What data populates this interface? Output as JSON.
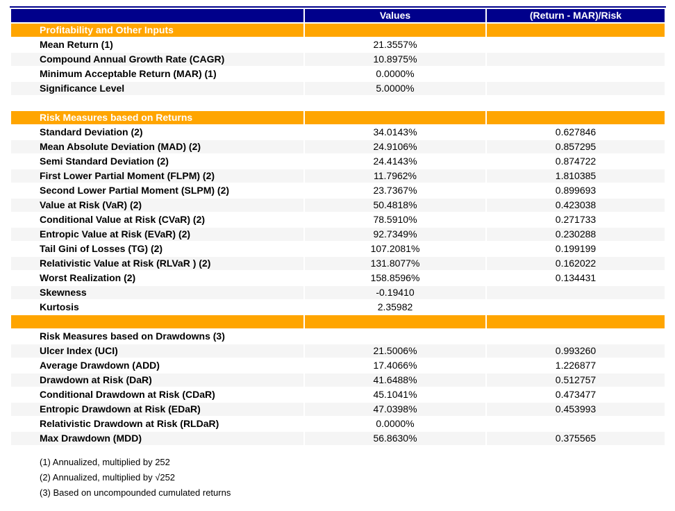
{
  "colors": {
    "header_bg": "#00008B",
    "section_bg": "#FFA500",
    "stripe_bg": "#F5F5F5",
    "header_text": "#FFFFFF",
    "body_text": "#000000"
  },
  "chart_data": {
    "type": "table",
    "columns": [
      "",
      "Values",
      "(Return - MAR)/Risk"
    ],
    "rows": [
      {
        "type": "section",
        "label": "Profitability and Other Inputs",
        "value": "",
        "ratio": ""
      },
      {
        "type": "data",
        "label": "Mean Return (1)",
        "value": "21.3557%",
        "ratio": ""
      },
      {
        "type": "data",
        "label": "Compound Annual Growth Rate (CAGR)",
        "value": "10.8975%",
        "ratio": ""
      },
      {
        "type": "data",
        "label": "Minimum Acceptable Return (MAR) (1)",
        "value": "0.0000%",
        "ratio": ""
      },
      {
        "type": "data",
        "label": "Significance Level",
        "value": "5.0000%",
        "ratio": ""
      },
      {
        "type": "blank",
        "label": "",
        "value": "",
        "ratio": ""
      },
      {
        "type": "section",
        "label": "Risk Measures based on Returns",
        "value": "",
        "ratio": ""
      },
      {
        "type": "data",
        "label": "Standard Deviation (2)",
        "value": "34.0143%",
        "ratio": "0.627846"
      },
      {
        "type": "data",
        "label": "Mean Absolute Deviation (MAD) (2)",
        "value": "24.9106%",
        "ratio": "0.857295"
      },
      {
        "type": "data",
        "label": "Semi Standard Deviation (2)",
        "value": "24.4143%",
        "ratio": "0.874722"
      },
      {
        "type": "data",
        "label": "First Lower Partial Moment (FLPM) (2)",
        "value": "11.7962%",
        "ratio": "1.810385"
      },
      {
        "type": "data",
        "label": "Second Lower Partial Moment (SLPM) (2)",
        "value": "23.7367%",
        "ratio": "0.899693"
      },
      {
        "type": "data",
        "label": "Value at Risk (VaR) (2)",
        "value": "50.4818%",
        "ratio": "0.423038"
      },
      {
        "type": "data",
        "label": "Conditional Value at Risk (CVaR) (2)",
        "value": "78.5910%",
        "ratio": "0.271733"
      },
      {
        "type": "data",
        "label": "Entropic Value at Risk (EVaR) (2)",
        "value": "92.7349%",
        "ratio": "0.230288"
      },
      {
        "type": "data",
        "label": "Tail Gini of Losses (TG) (2)",
        "value": "107.2081%",
        "ratio": "0.199199"
      },
      {
        "type": "data",
        "label": "Relativistic Value at Risk (RLVaR ) (2)",
        "value": "131.8077%",
        "ratio": "0.162022"
      },
      {
        "type": "data",
        "label": "Worst Realization (2)",
        "value": "158.8596%",
        "ratio": "0.134431"
      },
      {
        "type": "data",
        "label": "Skewness",
        "value": "-0.19410",
        "ratio": ""
      },
      {
        "type": "data",
        "label": "Kurtosis",
        "value": "2.35982",
        "ratio": ""
      },
      {
        "type": "section",
        "label": "",
        "value": "",
        "ratio": ""
      },
      {
        "type": "subheader",
        "label": "Risk Measures based on Drawdowns (3)",
        "value": "",
        "ratio": ""
      },
      {
        "type": "data",
        "label": "Ulcer Index (UCI)",
        "value": "21.5006%",
        "ratio": "0.993260"
      },
      {
        "type": "data",
        "label": "Average Drawdown (ADD)",
        "value": "17.4066%",
        "ratio": "1.226877"
      },
      {
        "type": "data",
        "label": "Drawdown at Risk (DaR)",
        "value": "41.6488%",
        "ratio": "0.512757"
      },
      {
        "type": "data",
        "label": "Conditional Drawdown at Risk (CDaR)",
        "value": "45.1041%",
        "ratio": "0.473477"
      },
      {
        "type": "data",
        "label": "Entropic Drawdown at Risk (EDaR)",
        "value": "47.0398%",
        "ratio": "0.453993"
      },
      {
        "type": "data",
        "label": "Relativistic Drawdown at Risk (RLDaR)",
        "value": "0.0000%",
        "ratio": ""
      },
      {
        "type": "data",
        "label": "Max Drawdown (MDD)",
        "value": "56.8630%",
        "ratio": "0.375565"
      }
    ],
    "footnotes": [
      "(1) Annualized, multiplied by 252",
      "(2) Annualized, multiplied by √252",
      "(3) Based on uncompounded cumulated returns"
    ]
  }
}
